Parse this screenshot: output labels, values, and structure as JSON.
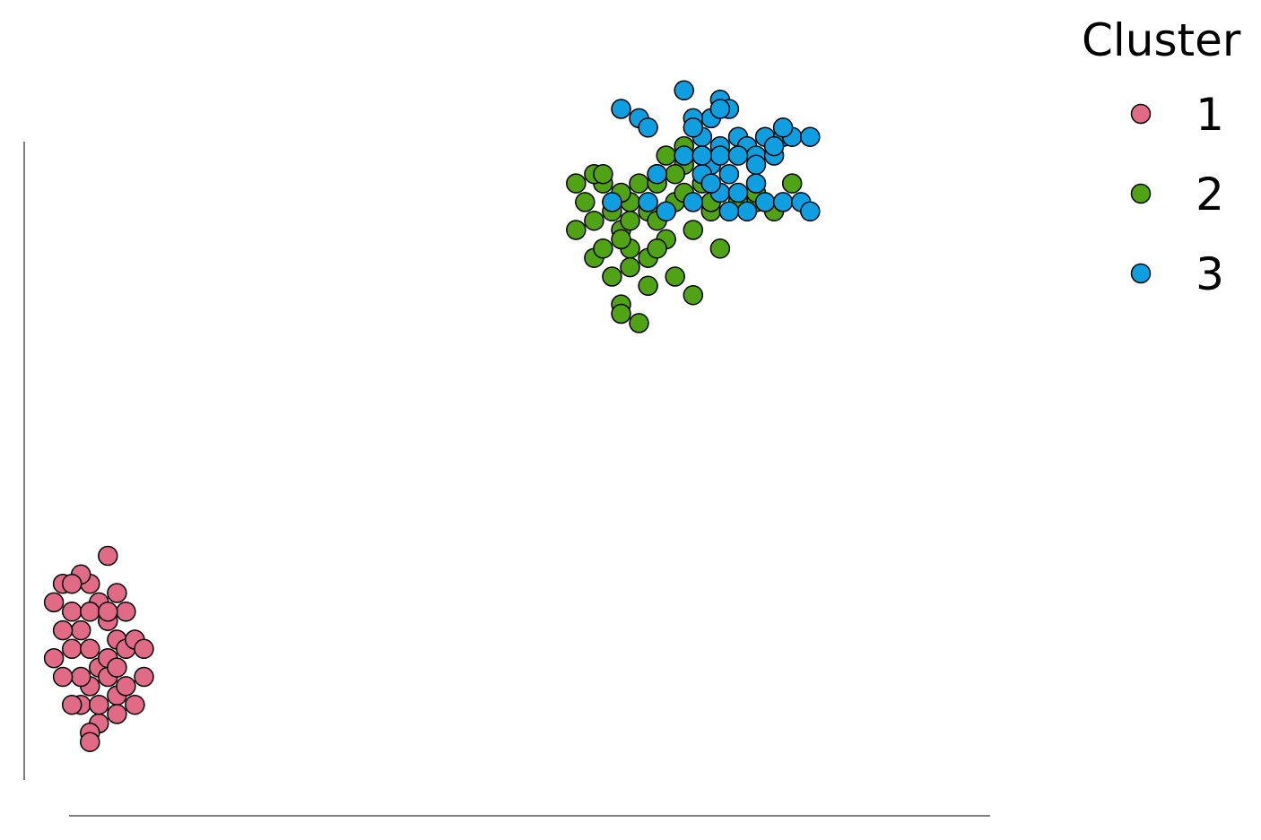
{
  "chart_data": {
    "type": "scatter",
    "title": "",
    "xlabel": "",
    "ylabel": "",
    "xlim": [
      -0.1,
      10.6
    ],
    "ylim": [
      -0.4,
      7.4
    ],
    "grid": false,
    "legend": {
      "title": "Cluster",
      "placement": "right"
    },
    "series": [
      {
        "name": "1",
        "color": "#E16A86",
        "points": [
          [
            0.6,
            1.9
          ],
          [
            0.8,
            1.5
          ],
          [
            0.9,
            1.3
          ],
          [
            0.7,
            1.0
          ],
          [
            1.0,
            1.2
          ],
          [
            0.6,
            0.8
          ],
          [
            0.9,
            0.7
          ],
          [
            0.5,
            1.4
          ],
          [
            0.4,
            1.6
          ],
          [
            0.3,
            1.9
          ],
          [
            0.2,
            1.1
          ],
          [
            0.5,
            0.6
          ],
          [
            0.7,
            0.4
          ],
          [
            0.8,
            0.9
          ],
          [
            0.4,
            1.2
          ],
          [
            1.1,
            1.3
          ],
          [
            1.2,
            0.9
          ],
          [
            1.1,
            0.6
          ],
          [
            0.9,
            0.5
          ],
          [
            0.6,
            0.3
          ],
          [
            0.7,
            1.7
          ],
          [
            0.5,
            2.0
          ],
          [
            0.9,
            1.8
          ],
          [
            1.0,
            1.6
          ],
          [
            0.8,
            1.1
          ],
          [
            0.3,
            1.4
          ],
          [
            0.6,
            1.6
          ],
          [
            0.4,
            1.9
          ],
          [
            0.8,
            2.2
          ],
          [
            0.5,
            0.9
          ],
          [
            0.7,
            0.6
          ],
          [
            1.0,
            0.8
          ],
          [
            0.2,
            1.7
          ],
          [
            1.2,
            1.2
          ],
          [
            0.6,
            0.2
          ],
          [
            0.9,
            1.0
          ],
          [
            0.8,
            1.6
          ],
          [
            0.4,
            0.6
          ],
          [
            0.6,
            1.2
          ],
          [
            0.3,
            0.9
          ]
        ]
      },
      {
        "name": "2",
        "color": "#50A315",
        "points": [
          [
            6.8,
            5.9
          ],
          [
            7.0,
            5.6
          ],
          [
            6.6,
            5.5
          ],
          [
            6.5,
            5.7
          ],
          [
            6.9,
            5.8
          ],
          [
            7.1,
            6.0
          ],
          [
            6.3,
            6.2
          ],
          [
            6.4,
            6.0
          ],
          [
            6.2,
            6.3
          ],
          [
            6.7,
            6.2
          ],
          [
            7.5,
            5.9
          ],
          [
            7.4,
            6.2
          ],
          [
            7.6,
            6.1
          ],
          [
            7.3,
            5.7
          ],
          [
            8.0,
            6.0
          ],
          [
            8.2,
            5.9
          ],
          [
            8.0,
            6.1
          ],
          [
            7.8,
            6.0
          ],
          [
            7.2,
            6.4
          ],
          [
            7.0,
            6.5
          ],
          [
            6.9,
            6.3
          ],
          [
            6.8,
            5.4
          ],
          [
            6.6,
            5.3
          ],
          [
            6.4,
            5.2
          ],
          [
            6.8,
            5.1
          ],
          [
            6.5,
            4.9
          ],
          [
            7.1,
            5.2
          ],
          [
            7.3,
            5.0
          ],
          [
            6.6,
            6.0
          ],
          [
            7.2,
            6.1
          ],
          [
            6.9,
            6.2
          ],
          [
            7.1,
            6.3
          ],
          [
            6.5,
            6.1
          ],
          [
            6.3,
            6.3
          ],
          [
            6.0,
            6.2
          ],
          [
            6.2,
            5.4
          ],
          [
            7.4,
            6.5
          ],
          [
            7.5,
            6.4
          ],
          [
            6.2,
            5.8
          ],
          [
            6.3,
            5.5
          ],
          [
            6.5,
            5.6
          ],
          [
            7.2,
            6.6
          ],
          [
            6.4,
            5.9
          ],
          [
            7.6,
            5.5
          ],
          [
            8.4,
            6.2
          ],
          [
            6.5,
            4.8
          ],
          [
            6.7,
            4.7
          ],
          [
            6.9,
            5.5
          ],
          [
            6.6,
            5.8
          ],
          [
            7.5,
            6.0
          ],
          [
            6.1,
            6.0
          ],
          [
            6.0,
            5.7
          ]
        ]
      },
      {
        "name": "3",
        "color": "#0F9FE1",
        "points": [
          [
            7.6,
            7.1
          ],
          [
            7.7,
            7.0
          ],
          [
            7.5,
            6.9
          ],
          [
            7.3,
            6.9
          ],
          [
            7.8,
            6.7
          ],
          [
            7.9,
            6.6
          ],
          [
            8.1,
            6.7
          ],
          [
            8.0,
            6.5
          ],
          [
            7.6,
            6.6
          ],
          [
            7.5,
            6.4
          ],
          [
            7.7,
            6.3
          ],
          [
            7.4,
            6.3
          ],
          [
            7.6,
            6.1
          ],
          [
            7.8,
            6.1
          ],
          [
            8.1,
            6.0
          ],
          [
            7.9,
            5.9
          ],
          [
            8.3,
            6.0
          ],
          [
            8.5,
            6.0
          ],
          [
            8.6,
            5.9
          ],
          [
            8.0,
            6.4
          ],
          [
            8.3,
            6.7
          ],
          [
            8.4,
            6.7
          ],
          [
            8.2,
            6.5
          ],
          [
            7.3,
            6.0
          ],
          [
            6.8,
            6.0
          ],
          [
            7.0,
            5.9
          ],
          [
            6.9,
            6.3
          ],
          [
            6.7,
            6.9
          ],
          [
            7.4,
            6.7
          ],
          [
            7.6,
            6.5
          ],
          [
            7.5,
            6.2
          ],
          [
            8.0,
            6.2
          ],
          [
            7.8,
            6.5
          ],
          [
            8.6,
            6.7
          ],
          [
            7.6,
            7.0
          ],
          [
            6.5,
            7.0
          ],
          [
            6.8,
            6.8
          ],
          [
            7.2,
            6.5
          ],
          [
            8.3,
            6.8
          ],
          [
            7.2,
            7.2
          ],
          [
            7.3,
            6.8
          ],
          [
            8.2,
            6.6
          ],
          [
            7.7,
            5.9
          ],
          [
            7.4,
            6.5
          ],
          [
            6.4,
            6.0
          ]
        ]
      }
    ]
  }
}
